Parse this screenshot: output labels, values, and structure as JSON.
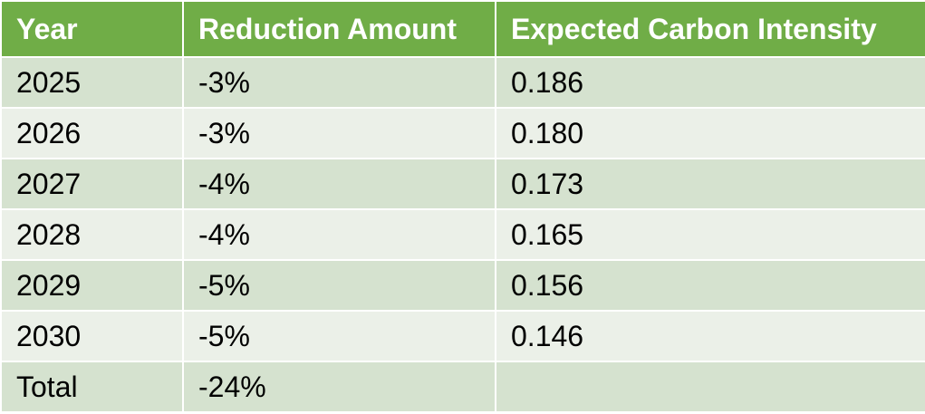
{
  "table": {
    "headers": [
      "Year",
      "Reduction Amount",
      "Expected Carbon Intensity"
    ],
    "rows": [
      [
        "2025",
        "-3%",
        "0.186"
      ],
      [
        "2026",
        "-3%",
        "0.180"
      ],
      [
        "2027",
        "-4%",
        "0.173"
      ],
      [
        "2028",
        "-4%",
        "0.165"
      ],
      [
        "2029",
        "-5%",
        "0.156"
      ],
      [
        "2030",
        "-5%",
        "0.146"
      ],
      [
        "Total",
        "-24%",
        ""
      ]
    ]
  },
  "colors": {
    "header_bg": "#70ad47",
    "header_text": "#ffffff",
    "row_band_dark": "#d5e2cf",
    "row_band_light": "#ebf0e8",
    "border": "#ffffff"
  }
}
